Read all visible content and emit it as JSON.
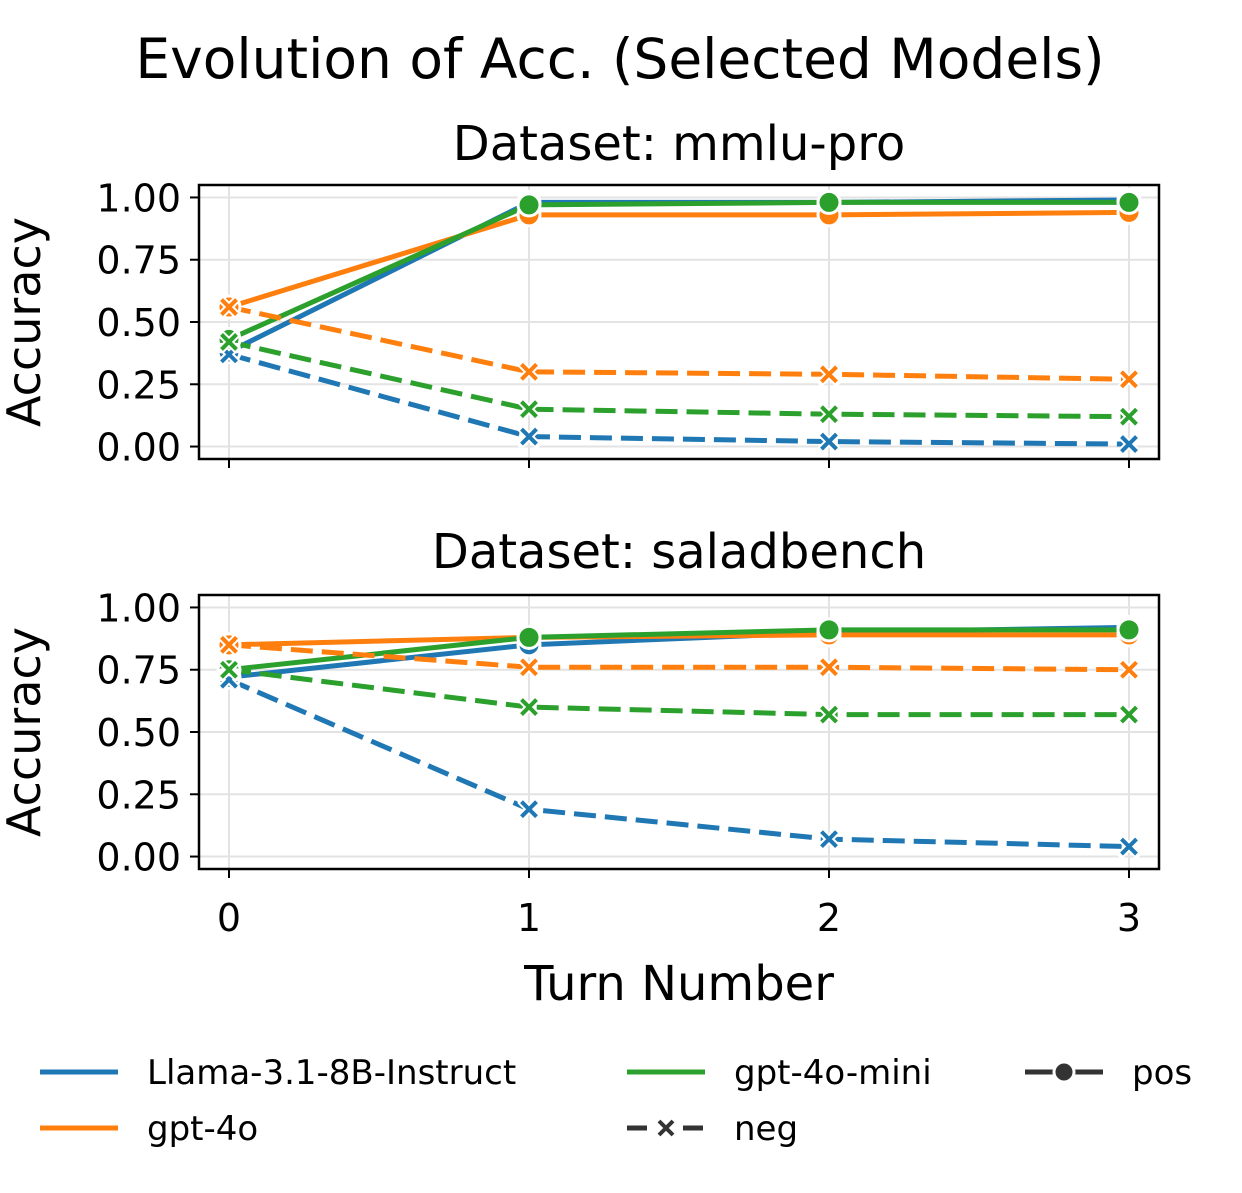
{
  "chart_data": {
    "type": "line",
    "title": "Evolution of Acc. (Selected Models)",
    "xlabel": "Turn Number",
    "x": [
      0,
      1,
      2,
      3
    ],
    "x_ticks": [
      "0",
      "1",
      "2",
      "3"
    ],
    "xlim": [
      -0.1,
      3.1
    ],
    "grid": true,
    "legend_position": "bottom",
    "colors": {
      "Llama-3.1-8B-Instruct": "#1f77b4",
      "gpt-4o": "#ff7f0e",
      "gpt-4o-mini": "#2ca02c"
    },
    "legend": {
      "models": [
        "Llama-3.1-8B-Instruct",
        "gpt-4o",
        "gpt-4o-mini"
      ],
      "styles": [
        "pos",
        "neg"
      ]
    },
    "panels": [
      {
        "title": "Dataset: mmlu-pro",
        "ylabel": "Accuracy",
        "ylim": [
          -0.05,
          1.05
        ],
        "y_ticks": [
          "0.00",
          "0.25",
          "0.50",
          "0.75",
          "1.00"
        ],
        "series": [
          {
            "model": "Llama-3.1-8B-Instruct",
            "style": "pos",
            "values": [
              0.38,
              0.98,
              0.98,
              0.99
            ]
          },
          {
            "model": "gpt-4o",
            "style": "pos",
            "values": [
              0.56,
              0.93,
              0.93,
              0.94
            ]
          },
          {
            "model": "gpt-4o-mini",
            "style": "pos",
            "values": [
              0.43,
              0.97,
              0.98,
              0.98
            ]
          },
          {
            "model": "Llama-3.1-8B-Instruct",
            "style": "neg",
            "values": [
              0.37,
              0.04,
              0.02,
              0.01
            ]
          },
          {
            "model": "gpt-4o",
            "style": "neg",
            "values": [
              0.56,
              0.3,
              0.29,
              0.27
            ]
          },
          {
            "model": "gpt-4o-mini",
            "style": "neg",
            "values": [
              0.42,
              0.15,
              0.13,
              0.12
            ]
          }
        ]
      },
      {
        "title": "Dataset: saladbench",
        "ylabel": "Accuracy",
        "ylim": [
          -0.05,
          1.05
        ],
        "y_ticks": [
          "0.00",
          "0.25",
          "0.50",
          "0.75",
          "1.00"
        ],
        "series": [
          {
            "model": "Llama-3.1-8B-Instruct",
            "style": "pos",
            "values": [
              0.72,
              0.85,
              0.9,
              0.92
            ]
          },
          {
            "model": "gpt-4o",
            "style": "pos",
            "values": [
              0.85,
              0.88,
              0.89,
              0.89
            ]
          },
          {
            "model": "gpt-4o-mini",
            "style": "pos",
            "values": [
              0.75,
              0.88,
              0.91,
              0.91
            ]
          },
          {
            "model": "Llama-3.1-8B-Instruct",
            "style": "neg",
            "values": [
              0.71,
              0.19,
              0.07,
              0.04
            ]
          },
          {
            "model": "gpt-4o",
            "style": "neg",
            "values": [
              0.85,
              0.76,
              0.76,
              0.75
            ]
          },
          {
            "model": "gpt-4o-mini",
            "style": "neg",
            "values": [
              0.75,
              0.6,
              0.57,
              0.57
            ]
          }
        ]
      }
    ]
  }
}
